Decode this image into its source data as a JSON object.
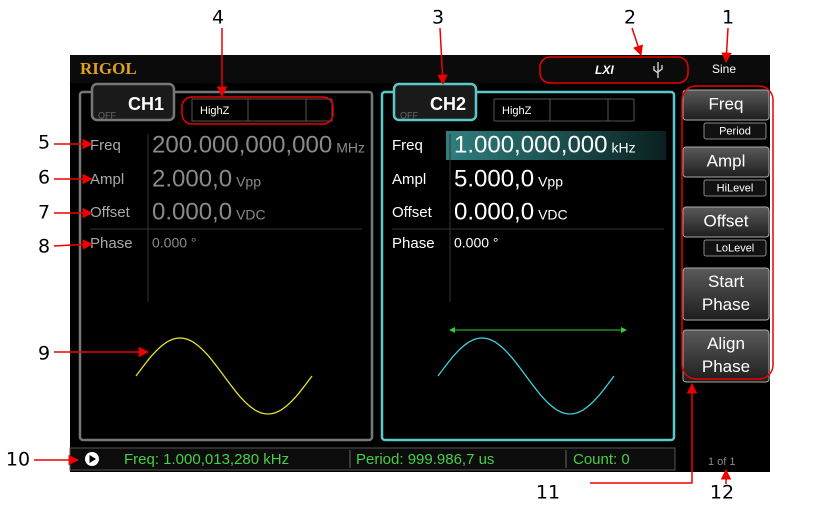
{
  "callouts": [
    "1",
    "2",
    "3",
    "4",
    "5",
    "6",
    "7",
    "8",
    "9",
    "10",
    "11",
    "12"
  ],
  "header": {
    "brand": "RIGOL",
    "lxi": "LXI",
    "waveform": "Sine"
  },
  "channels": [
    {
      "state": "OFF",
      "name": "CH1",
      "load": "HighZ",
      "params": [
        {
          "label": "Freq",
          "value": "200.000,000,000",
          "unit": "MHz"
        },
        {
          "label": "Ampl",
          "value": "2.000,0",
          "unit": "Vpp"
        },
        {
          "label": "Offset",
          "value": "0.000,0",
          "unit": "VDC"
        },
        {
          "label": "Phase",
          "value": "0.000 °"
        }
      ]
    },
    {
      "state": "OFF",
      "name": "CH2",
      "load": "HighZ",
      "params": [
        {
          "label": "Freq",
          "value": "1.000,000,000",
          "unit": "kHz"
        },
        {
          "label": "Ampl",
          "value": "5.000,0",
          "unit": "Vpp"
        },
        {
          "label": "Offset",
          "value": "0.000,0",
          "unit": "VDC"
        },
        {
          "label": "Phase",
          "value": "0.000 °"
        }
      ]
    }
  ],
  "menu": [
    {
      "label": [
        "Freq"
      ],
      "sub": "Period"
    },
    {
      "label": [
        "Ampl"
      ],
      "sub": "HiLevel"
    },
    {
      "label": [
        "Offset"
      ],
      "sub": "LoLevel"
    },
    {
      "label": [
        "Start",
        "Phase"
      ]
    },
    {
      "label": [
        "Align",
        "Phase"
      ]
    }
  ],
  "status": {
    "freq": "Freq: 1.000,013,280 kHz",
    "period": "Period: 999.986,7 us",
    "count": "Count: 0"
  },
  "page": "1 of 1"
}
